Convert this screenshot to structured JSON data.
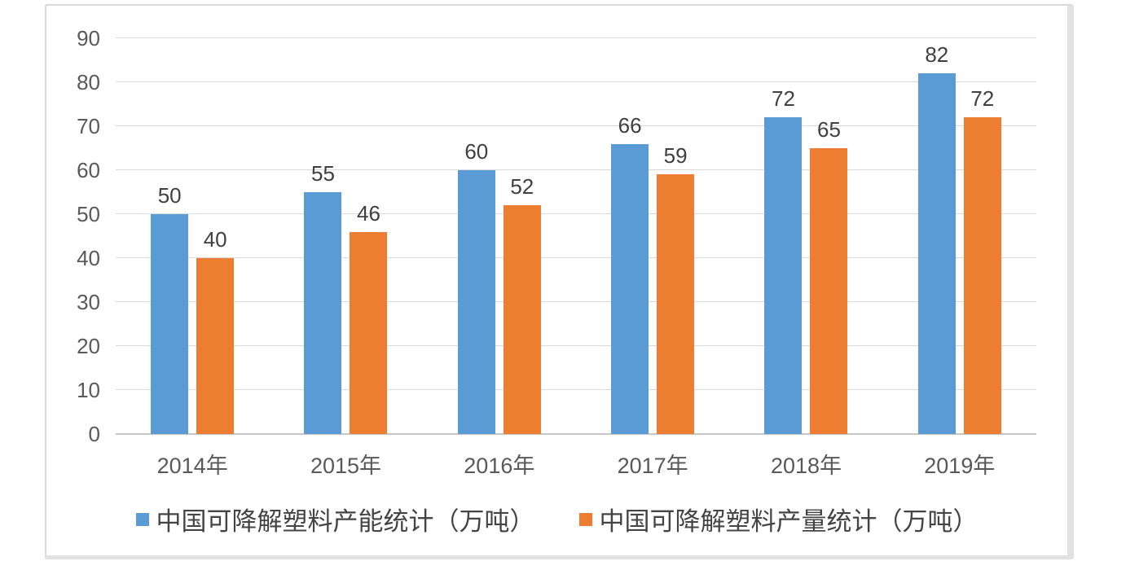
{
  "colors": {
    "background": "#ffffff",
    "frame_border": "#d9d9d9",
    "frame_border_thick": "#e2e2e2",
    "gridline": "#d9d9d9",
    "axis_line": "#c6c6c6",
    "tick_text": "#595959",
    "data_label_text": "#404040",
    "legend_text": "#444444",
    "series_blue": "#5B9BD5",
    "series_orange": "#ED7D31"
  },
  "chart_data": {
    "type": "bar",
    "title": "",
    "xlabel": "",
    "ylabel": "",
    "categories": [
      "2014年",
      "2015年",
      "2016年",
      "2017年",
      "2018年",
      "2019年"
    ],
    "series": [
      {
        "key": "capacity",
        "name": "中国可降解塑料产能统计（万吨）",
        "color": "#5B9BD5",
        "values": [
          50,
          55,
          60,
          66,
          72,
          82
        ]
      },
      {
        "key": "output",
        "name": "中国可降解塑料产量统计（万吨）",
        "color": "#ED7D31",
        "values": [
          40,
          46,
          52,
          59,
          65,
          72
        ]
      }
    ],
    "ylim": [
      0,
      90
    ],
    "ytick_step": 10,
    "yticks": [
      0,
      10,
      20,
      30,
      40,
      50,
      60,
      70,
      80,
      90
    ],
    "grid": true,
    "data_labels": true,
    "legend_position": "bottom"
  }
}
